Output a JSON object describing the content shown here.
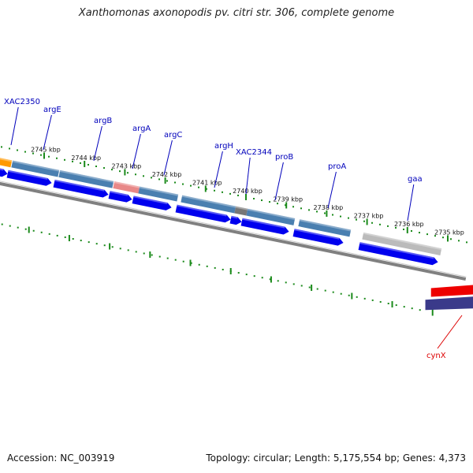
{
  "title": "Xanthomonas axonopodis pv. citri str. 306, complete genome",
  "footer": {
    "accession": "Accession: NC_003919",
    "summary": "Topology: circular; Length: 5,175,554 bp; Genes: 4,373"
  },
  "ticks": [
    {
      "label": "2745 kbp",
      "kbp": 2745
    },
    {
      "label": "2744 kbp",
      "kbp": 2744
    },
    {
      "label": "2743 kbp",
      "kbp": 2743
    },
    {
      "label": "2742 kbp",
      "kbp": 2742
    },
    {
      "label": "2741 kbp",
      "kbp": 2741
    },
    {
      "label": "2740 kbp",
      "kbp": 2740
    },
    {
      "label": "2739 kbp",
      "kbp": 2739
    },
    {
      "label": "2738 kbp",
      "kbp": 2738
    },
    {
      "label": "2737 kbp",
      "kbp": 2737
    },
    {
      "label": "2736 kbp",
      "kbp": 2736
    },
    {
      "label": "2735 kbp",
      "kbp": 2735
    }
  ],
  "gene_labels": [
    {
      "name": "XAC2350",
      "color": "#0000bb",
      "strand": "forward"
    },
    {
      "name": "argE",
      "color": "#0000bb",
      "strand": "forward"
    },
    {
      "name": "argB",
      "color": "#0000bb",
      "strand": "forward"
    },
    {
      "name": "argA",
      "color": "#0000bb",
      "strand": "forward"
    },
    {
      "name": "argC",
      "color": "#0000bb",
      "strand": "forward"
    },
    {
      "name": "argH",
      "color": "#0000bb",
      "strand": "forward"
    },
    {
      "name": "XAC2344",
      "color": "#0000bb",
      "strand": "forward"
    },
    {
      "name": "proB",
      "color": "#0000bb",
      "strand": "forward"
    },
    {
      "name": "proA",
      "color": "#0000bb",
      "strand": "forward"
    },
    {
      "name": "gaa",
      "color": "#0000bb",
      "strand": "forward"
    },
    {
      "name": "cynX",
      "color": "#dd0000",
      "strand": "reverse"
    }
  ],
  "colors": {
    "tick": "#1a8a1a",
    "backbone": "#808080",
    "cds": "#0000ee",
    "gene_default": "#4a7fb0",
    "gene_argA": "#e88888",
    "gene_xac2344": "#777777",
    "gene_gaa": "#bbbbbb",
    "gene_orange": "#ff9900",
    "reverse_red": "#ee0000",
    "reverse_purple": "#3a3a8a"
  }
}
